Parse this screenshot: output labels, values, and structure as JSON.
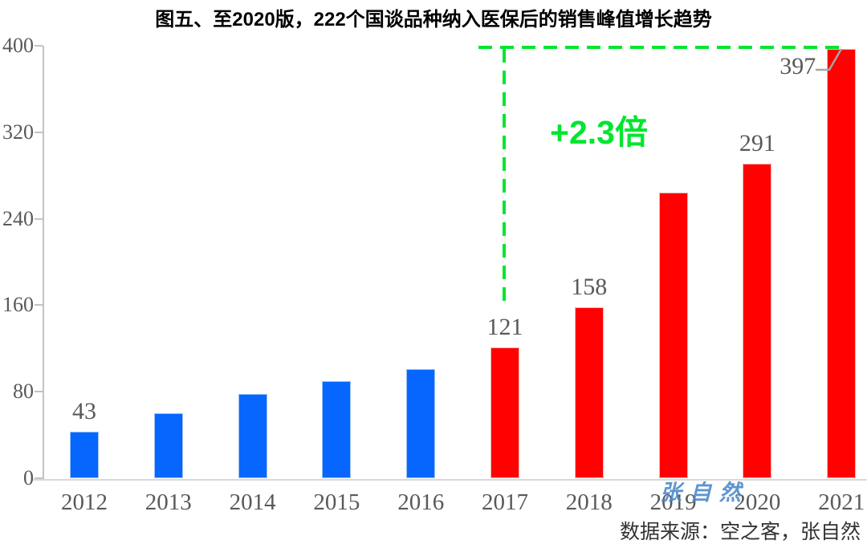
{
  "title": "图五、至2020版，222个国谈品种纳入医保后的销售峰值增长趋势",
  "source_caption": "数据来源：空之客，张自然",
  "watermark": "张自然",
  "colors": {
    "bar_blue": "#0666FE",
    "bar_blue_border": "#9CC2F5",
    "bar_red": "#FE0100",
    "bar_red_border": "#F0B6B0",
    "annotation_green": "#00E62E",
    "axis_line": "#C3C3C3",
    "baseline": "#D9D9D9",
    "label_gray": "#595959",
    "leader_gray": "#A6A6A6",
    "watermark_blue": "#4A87CB"
  },
  "chart_data": {
    "type": "bar",
    "title": "图五、至2020版，222个国谈品种纳入医保后的销售峰值增长趋势",
    "xlabel": "",
    "ylabel": "",
    "categories": [
      "2012",
      "2013",
      "2014",
      "2015",
      "2016",
      "2017",
      "2018",
      "2019",
      "2020",
      "2021"
    ],
    "values": [
      43,
      60,
      78,
      90,
      101,
      121,
      158,
      264,
      291,
      397
    ],
    "bar_labels": [
      "43",
      "",
      "",
      "",
      "",
      "121",
      "158",
      "",
      "291",
      "397"
    ],
    "point_colors": [
      "#0666FE",
      "#0666FE",
      "#0666FE",
      "#0666FE",
      "#0666FE",
      "#FE0100",
      "#FE0100",
      "#FE0100",
      "#FE0100",
      "#FE0100"
    ],
    "point_border_colors": [
      "#9CC2F5",
      "#9CC2F5",
      "#9CC2F5",
      "#9CC2F5",
      "#9CC2F5",
      "#F0B6B0",
      "#F0B6B0",
      "#F0B6B0",
      "#F0B6B0",
      "#F0B6B0"
    ],
    "yticks": [
      0,
      80,
      160,
      240,
      320,
      400
    ],
    "ylim": [
      0,
      400
    ],
    "grid": false,
    "legend": "none",
    "annotations": {
      "growth_label": "+2.3倍",
      "growth_from_category": "2017",
      "growth_to_category": "2021",
      "labeled_peak": "397"
    }
  }
}
